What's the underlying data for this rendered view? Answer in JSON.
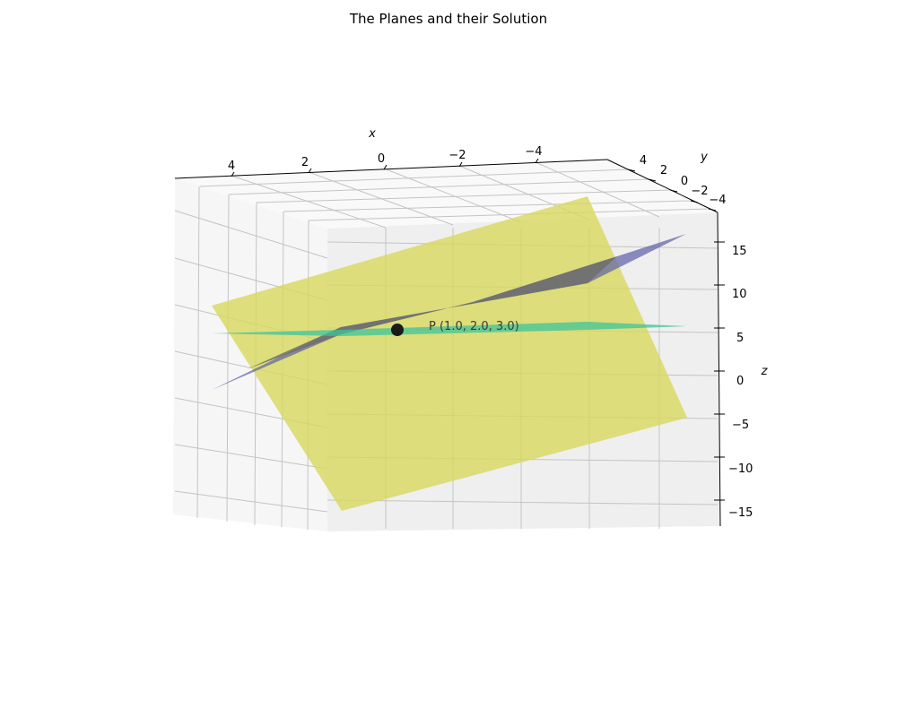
{
  "chart_data": {
    "type": "3d-surface",
    "title": "The Planes and their Solution",
    "xlabel": "x",
    "ylabel": "y",
    "zlabel": "z",
    "xlim": [
      -5,
      5
    ],
    "ylim": [
      -5,
      5
    ],
    "zlim": [
      -17,
      17
    ],
    "x_ticks": [
      "4",
      "2",
      "0",
      "−2",
      "−4"
    ],
    "y_ticks": [
      "4",
      "2",
      "0",
      "−2",
      "−4"
    ],
    "z_ticks": [
      "15",
      "10",
      "5",
      "0",
      "−5",
      "−10",
      "−15"
    ],
    "grid": true,
    "planes": [
      {
        "color": "#d8d85e",
        "alpha": 0.8
      },
      {
        "color": "#5d5fa8",
        "alpha": 0.7
      },
      {
        "color": "#3cc49a",
        "alpha": 0.75
      }
    ],
    "solution_point": {
      "x": 1.0,
      "y": 2.0,
      "z": 3.0,
      "label": "P (1.0, 2.0, 3.0)",
      "color": "#1a1a1a"
    }
  }
}
